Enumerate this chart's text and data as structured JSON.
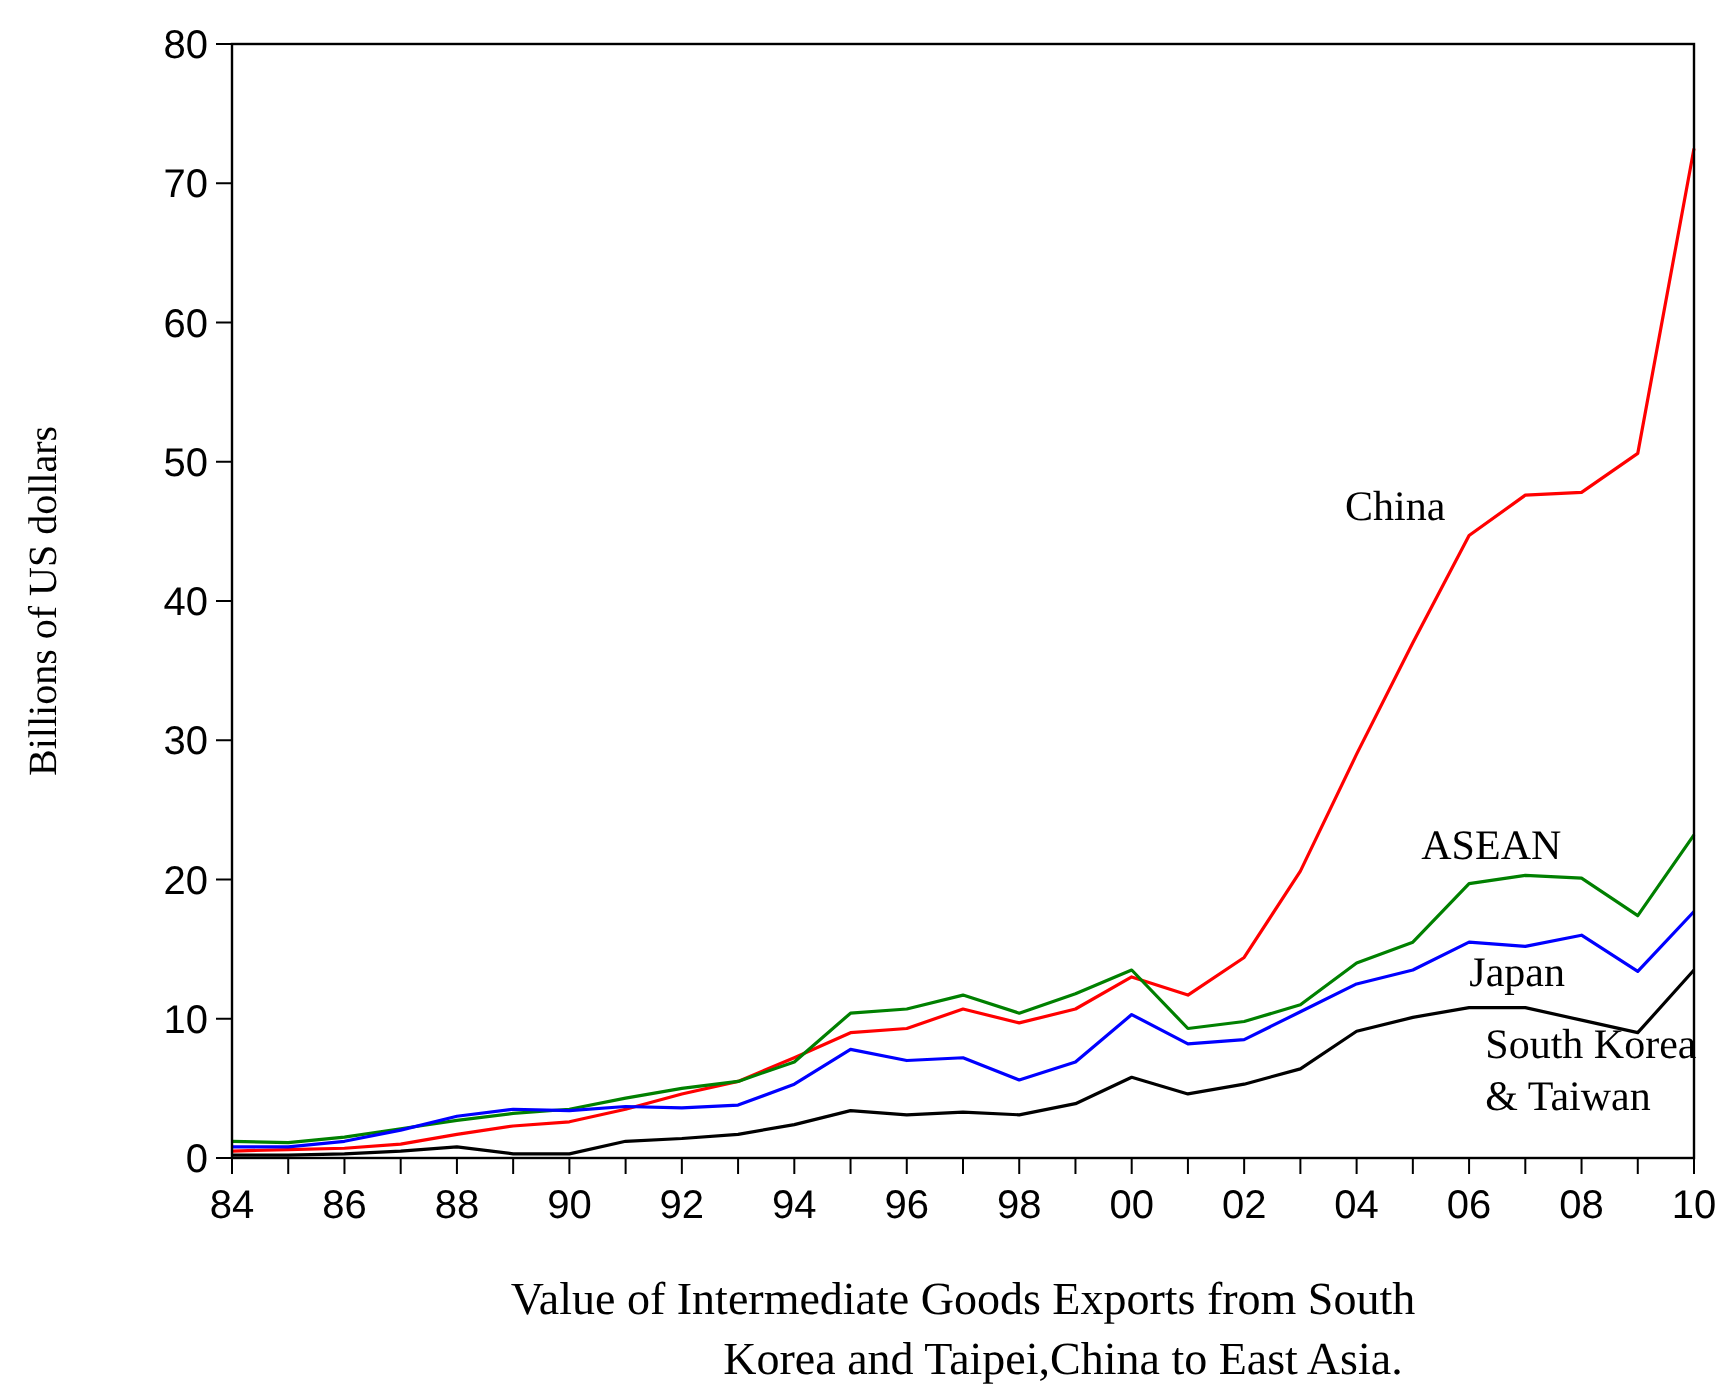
{
  "chart_data": {
    "type": "line",
    "xlabel": "Value of Intermediate Goods Exports from South Korea and Taipei,China to East Asia.",
    "ylabel": "Billions of US dollars",
    "x": [
      1984,
      1985,
      1986,
      1987,
      1988,
      1989,
      1990,
      1991,
      1992,
      1993,
      1994,
      1995,
      1996,
      1997,
      1998,
      1999,
      2000,
      2001,
      2002,
      2003,
      2004,
      2005,
      2006,
      2007,
      2008,
      2009,
      2010
    ],
    "series": [
      {
        "name": "China",
        "color": "#ff0000",
        "values": [
          0.5,
          0.6,
          0.7,
          1.0,
          1.7,
          2.3,
          2.6,
          3.5,
          4.6,
          5.5,
          7.2,
          9.0,
          9.3,
          10.7,
          9.7,
          10.7,
          13.0,
          11.7,
          14.4,
          20.6,
          29,
          37,
          44.7,
          47.6,
          47.8,
          50.6,
          72.5
        ]
      },
      {
        "name": "ASEAN",
        "color": "#008000",
        "values": [
          1.2,
          1.1,
          1.5,
          2.1,
          2.7,
          3.2,
          3.5,
          4.3,
          5.0,
          5.5,
          6.9,
          10.4,
          10.7,
          11.7,
          10.4,
          11.8,
          13.5,
          9.3,
          9.8,
          11.0,
          14.0,
          15.5,
          19.7,
          20.3,
          20.1,
          17.4,
          23.2
        ]
      },
      {
        "name": "Japan",
        "color": "#0000ff",
        "values": [
          0.8,
          0.8,
          1.2,
          2.0,
          3.0,
          3.5,
          3.4,
          3.7,
          3.6,
          3.8,
          5.3,
          7.8,
          7.0,
          7.2,
          5.6,
          6.9,
          10.3,
          8.2,
          8.5,
          10.5,
          12.5,
          13.5,
          15.5,
          15.2,
          16.0,
          13.4,
          17.7
        ]
      },
      {
        "name": "South Korea & Taiwan",
        "color": "#000000",
        "values": [
          0.2,
          0.2,
          0.3,
          0.5,
          0.8,
          0.3,
          0.3,
          1.2,
          1.4,
          1.7,
          2.4,
          3.4,
          3.1,
          3.3,
          3.1,
          3.9,
          5.8,
          4.6,
          5.3,
          6.4,
          9.1,
          10.1,
          10.8,
          10.8,
          9.9,
          9.0,
          13.5
        ]
      }
    ],
    "xlim": [
      1984,
      2010
    ],
    "xticks": [
      {
        "value": 1984,
        "label": "84"
      },
      {
        "value": 1985,
        "label": null
      },
      {
        "value": 1986,
        "label": "86"
      },
      {
        "value": 1987,
        "label": null
      },
      {
        "value": 1988,
        "label": "88"
      },
      {
        "value": 1989,
        "label": null
      },
      {
        "value": 1990,
        "label": "90"
      },
      {
        "value": 1991,
        "label": null
      },
      {
        "value": 1992,
        "label": "92"
      },
      {
        "value": 1993,
        "label": null
      },
      {
        "value": 1994,
        "label": "94"
      },
      {
        "value": 1995,
        "label": null
      },
      {
        "value": 1996,
        "label": "96"
      },
      {
        "value": 1997,
        "label": null
      },
      {
        "value": 1998,
        "label": "98"
      },
      {
        "value": 1999,
        "label": null
      },
      {
        "value": 2000,
        "label": "00"
      },
      {
        "value": 2001,
        "label": null
      },
      {
        "value": 2002,
        "label": "02"
      },
      {
        "value": 2003,
        "label": null
      },
      {
        "value": 2004,
        "label": "04"
      },
      {
        "value": 2005,
        "label": null
      },
      {
        "value": 2006,
        "label": "06"
      },
      {
        "value": 2007,
        "label": null
      },
      {
        "value": 2008,
        "label": "08"
      },
      {
        "value": 2009,
        "label": null
      },
      {
        "value": 2010,
        "label": "10"
      }
    ],
    "ylim": [
      0,
      80
    ],
    "yticks": [
      0,
      10,
      20,
      30,
      40,
      50,
      60,
      70,
      80
    ],
    "grid": false,
    "line_style": "solid"
  }
}
